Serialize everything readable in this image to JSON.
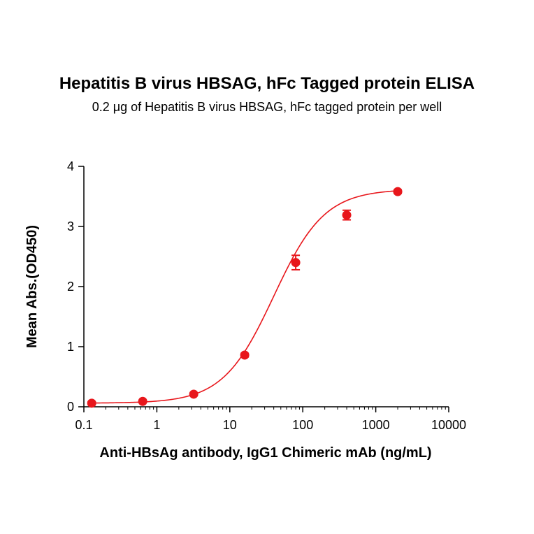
{
  "chart_data": {
    "type": "scatter",
    "title": "Hepatitis B virus HBSAG, hFc Tagged protein ELISA",
    "subtitle": "0.2 μg of Hepatitis B virus HBSAG, hFc tagged protein per well",
    "xlabel": "Anti-HBsAg antibody, IgG1 Chimeric mAb  (ng/mL)",
    "ylabel": "Mean Abs.(OD450)",
    "x_scale": "log",
    "xlim": [
      0.1,
      10000
    ],
    "ylim": [
      0,
      4
    ],
    "x_ticks": [
      0.1,
      1,
      10,
      100,
      1000,
      10000
    ],
    "x_tick_labels": [
      "0.1",
      "1",
      "10",
      "100",
      "1000",
      "10000"
    ],
    "y_ticks": [
      0,
      1,
      2,
      3,
      4
    ],
    "y_tick_labels": [
      "0",
      "1",
      "2",
      "3",
      "4"
    ],
    "grid": false,
    "color": "#e8161b",
    "series": [
      {
        "x": [
          0.128,
          0.64,
          3.2,
          16,
          80,
          400,
          2000
        ],
        "y": [
          0.06,
          0.09,
          0.21,
          0.86,
          2.4,
          3.19,
          3.58
        ],
        "error": [
          0.02,
          0.02,
          0.02,
          0.03,
          0.12,
          0.08,
          0.03
        ],
        "fit": {
          "model": "4PL",
          "bottom": 0.06,
          "top": 3.62,
          "ec50": 40,
          "hill": 1.25,
          "x_range": [
            0.128,
            2000
          ]
        }
      }
    ]
  }
}
